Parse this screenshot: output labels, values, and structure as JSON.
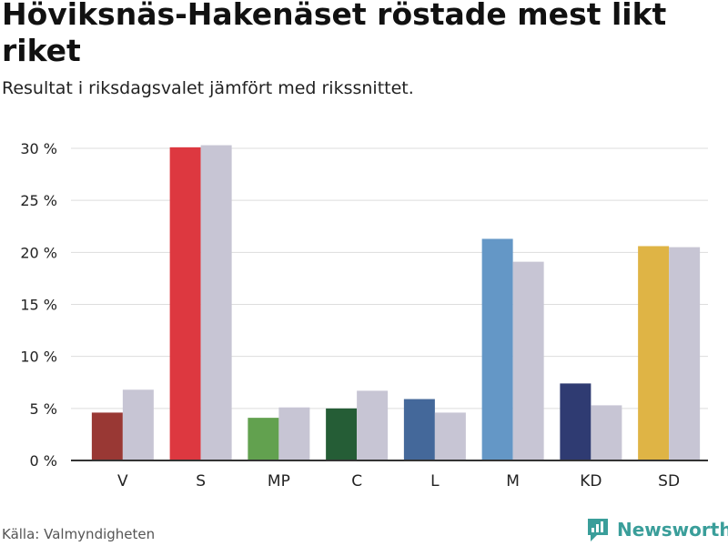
{
  "title": "Höviksnäs-Hakenäset röstade mest likt riket",
  "subtitle": "Resultat i riksdagsvalet jämfört med rikssnittet.",
  "source": "Källa: Valmyndigheten",
  "brand": "Newsworthy",
  "colors": {
    "comparison": "#c7c5d4",
    "axis": "#333333",
    "grid": "#dddddd",
    "brand": "#3a9e9a"
  },
  "chart_data": {
    "type": "bar",
    "title": "Höviksnäs-Hakenäset röstade mest likt riket",
    "subtitle": "Resultat i riksdagsvalet jämfört med rikssnittet.",
    "categories": [
      "V",
      "S",
      "MP",
      "C",
      "L",
      "M",
      "KD",
      "SD"
    ],
    "category_colors": [
      "#993834",
      "#dd3840",
      "#62a14f",
      "#255d36",
      "#44689a",
      "#6497c6",
      "#2f3b72",
      "#dfb445"
    ],
    "series": [
      {
        "values": [
          4.6,
          30.1,
          4.1,
          5.0,
          5.9,
          21.3,
          7.4,
          20.6
        ]
      },
      {
        "values": [
          6.8,
          30.3,
          5.1,
          6.7,
          4.6,
          19.1,
          5.3,
          20.5
        ]
      }
    ],
    "yticks": [
      "0 %",
      "5 %",
      "10 %",
      "15 %",
      "20 %",
      "25 %",
      "30 %"
    ],
    "ylim": [
      0,
      30
    ],
    "grid": true,
    "xlabel": "",
    "ylabel": ""
  }
}
